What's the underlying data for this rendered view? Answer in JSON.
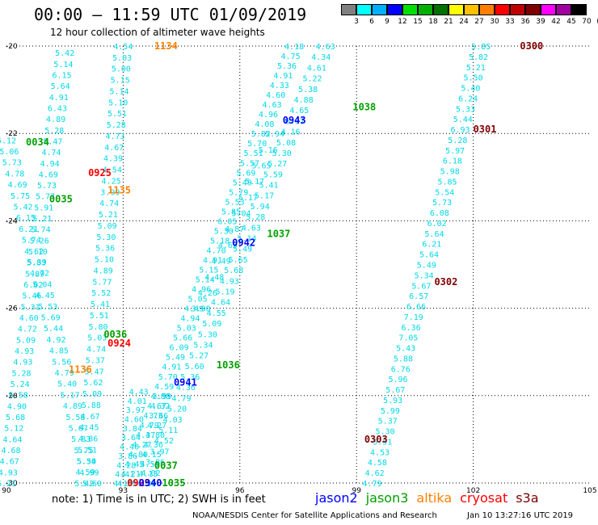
{
  "header": {
    "title": "00:00 – 11:59 UTC 01/09/2019",
    "subtitle": "12 hour collection of altimeter wave heights"
  },
  "colorbar": {
    "ticks": [
      "3",
      "6",
      "9",
      "12",
      "15",
      "18",
      "21",
      "24",
      "27",
      "30",
      "33",
      "36",
      "39",
      "42",
      "45",
      "70",
      "(ft)"
    ],
    "colors": [
      "#808080",
      "#00ffff",
      "#00b0ff",
      "#0000ff",
      "#00e000",
      "#00b000",
      "#007000",
      "#ffff00",
      "#ffc000",
      "#ff8000",
      "#ff0000",
      "#c00000",
      "#800000",
      "#ff00ff",
      "#a000a0",
      "#000000"
    ]
  },
  "map": {
    "xticks": [
      "90",
      "93",
      "96",
      "99",
      "102",
      "105"
    ],
    "yticks": [
      "-20",
      "-22",
      "-24",
      "-26",
      "-28",
      "-30"
    ]
  },
  "chart_data": {
    "type": "scatter",
    "lon_range": [
      90,
      105
    ],
    "lat_range": [
      -30,
      -20
    ],
    "pass_labels": [
      {
        "text": "1134",
        "lon": 94.1,
        "lat": -20.0,
        "sat": "altika"
      },
      {
        "text": "0300",
        "lon": 103.5,
        "lat": -20.0,
        "sat": "s3a"
      },
      {
        "text": "1038",
        "lon": 99.2,
        "lat": -21.4,
        "sat": "jason3"
      },
      {
        "text": "0943",
        "lon": 97.4,
        "lat": -21.7,
        "sat": "jason2"
      },
      {
        "text": "0301",
        "lon": 102.3,
        "lat": -21.9,
        "sat": "s3a"
      },
      {
        "text": "0034",
        "lon": 90.8,
        "lat": -22.2,
        "sat": "jason3"
      },
      {
        "text": "0925",
        "lon": 92.4,
        "lat": -22.9,
        "sat": "cryosat"
      },
      {
        "text": "1135",
        "lon": 92.9,
        "lat": -23.3,
        "sat": "altika"
      },
      {
        "text": "0035",
        "lon": 91.4,
        "lat": -23.5,
        "sat": "jason3"
      },
      {
        "text": "1037",
        "lon": 97.0,
        "lat": -24.3,
        "sat": "jason3"
      },
      {
        "text": "0942",
        "lon": 96.1,
        "lat": -24.5,
        "sat": "jason2"
      },
      {
        "text": "0302",
        "lon": 101.3,
        "lat": -25.4,
        "sat": "s3a"
      },
      {
        "text": "0036",
        "lon": 92.8,
        "lat": -26.6,
        "sat": "jason3"
      },
      {
        "text": "0924",
        "lon": 92.9,
        "lat": -26.8,
        "sat": "cryosat"
      },
      {
        "text": "1136",
        "lon": 91.9,
        "lat": -27.4,
        "sat": "altika"
      },
      {
        "text": "1036",
        "lon": 95.7,
        "lat": -27.3,
        "sat": "jason3"
      },
      {
        "text": "0941",
        "lon": 94.6,
        "lat": -27.7,
        "sat": "jason2"
      },
      {
        "text": "0303",
        "lon": 99.5,
        "lat": -29.0,
        "sat": "s3a"
      },
      {
        "text": "0037",
        "lon": 94.1,
        "lat": -29.6,
        "sat": "jason3"
      },
      {
        "text": "0923",
        "lon": 93.4,
        "lat": -30.0,
        "sat": "cryosat"
      },
      {
        "text": "0940",
        "lon": 93.7,
        "lat": -30.0,
        "sat": "jason2"
      },
      {
        "text": "1035",
        "lon": 94.3,
        "lat": -30.0,
        "sat": "jason3"
      }
    ],
    "tracks": [
      {
        "name": "t1",
        "lon_start": 91.5,
        "lat_start": -20.15,
        "lon_end": 90.0,
        "lat_end": -30.0,
        "values": [
          "5.42",
          "5.14",
          "6.15",
          "5.64",
          "4.91",
          "6.43",
          "4.89",
          "5.28",
          "5.47",
          "4.74",
          "4.94",
          "4.69",
          "5.73",
          "5.77",
          "5.91",
          "5.21",
          "5.74",
          "5.26",
          "5.10",
          "5.83",
          "5.89",
          "6.02",
          "5.46",
          "5.31",
          "4.60",
          "4.72",
          "5.09",
          "4.93",
          "4.93",
          "5.28",
          "5.24",
          "5.58",
          "4.90",
          "5.68",
          "5.12",
          "4.64",
          "4.68",
          "4.67",
          "4.93",
          "5.21"
        ]
      },
      {
        "name": "t2",
        "lon_start": 93.0,
        "lat_start": -20.0,
        "lon_end": 92.0,
        "lat_end": -30.0,
        "values": [
          "4.54",
          "5.03",
          "5.00",
          "5.15",
          "5.14",
          "5.10",
          "5.51",
          "5.28",
          "4.73",
          "4.67",
          "4.39",
          "4.54",
          "4.25",
          "3.99",
          "4.74",
          "5.21",
          "5.09",
          "5.30",
          "5.36",
          "5.10",
          "4.89",
          "5.77",
          "5.52",
          "5.41",
          "5.51",
          "5.80",
          "5.03",
          "4.74",
          "5.37",
          "5.47",
          "5.62",
          "5.09",
          "5.88",
          "4.67",
          "4.45",
          "4.86",
          "5.51",
          "5.34",
          "4.59",
          "5.42"
        ]
      },
      {
        "name": "t3",
        "lon_start": 90.0,
        "lat_start": -22.15,
        "lon_end": 92.2,
        "lat_end": -30.0,
        "values": [
          "5.12",
          "5.06",
          "5.73",
          "4.78",
          "4.69",
          "5.75",
          "5.42",
          "6.15",
          "6.21",
          "5.74",
          "4.62",
          "5.39",
          "4.72",
          "5.04",
          "4.45",
          "5.53",
          "5.69",
          "5.44",
          "4.92",
          "4.85",
          "5.56",
          "4.79",
          "5.40",
          "5.17",
          "4.89",
          "5.58",
          "5.67",
          "5.83",
          "5.75",
          "5.50",
          "4.99",
          "5.60"
        ]
      },
      {
        "name": "t4",
        "lon_start": 93.4,
        "lat_start": -27.9,
        "lon_end": 93.0,
        "lat_end": -30.0,
        "values": [
          "4.43",
          "4.01",
          "3.97",
          "4.60",
          "3.84",
          "3.64",
          "4.40",
          "3.86",
          "4.28",
          "4.41",
          "4.18"
        ]
      },
      {
        "name": "t5",
        "lon_start": 94.0,
        "lat_start": -28.0,
        "lon_end": 93.6,
        "lat_end": -30.0,
        "values": [
          "3.99",
          "4.32",
          "3.66",
          "4.27",
          "4.80",
          "4.36",
          "4.15",
          "4.55",
          "4.13",
          "4.35"
        ]
      },
      {
        "name": "t6",
        "lon_start": 97.4,
        "lat_start": -20.0,
        "lon_end": 93.1,
        "lat_end": -30.0,
        "values": [
          "4.18",
          "4.75",
          "5.36",
          "4.91",
          "4.33",
          "4.60",
          "4.63",
          "4.96",
          "4.08",
          "5.82",
          "5.70",
          "5.51",
          "5.57",
          "5.69",
          "5.49",
          "5.79",
          "5.53",
          "5.85",
          "6.05",
          "5.30",
          "5.18",
          "4.70",
          "4.91",
          "5.15",
          "5.14",
          "4.96",
          "5.05",
          "4.49",
          "4.94",
          "5.03",
          "5.66",
          "6.09",
          "5.49",
          "4.91",
          "5.70",
          "4.59",
          "4.80",
          "4.67",
          "4.73",
          "4.79",
          "4.37",
          "4.27",
          "4.80",
          "4.45",
          "4.21",
          "4.39"
        ]
      },
      {
        "name": "t7",
        "lon_start": 98.2,
        "lat_start": -20.0,
        "lon_end": 93.6,
        "lat_end": -30.0,
        "values": [
          "4.63",
          "4.34",
          "4.61",
          "5.22",
          "5.38",
          "4.88",
          "4.65",
          "6.07",
          "4.16",
          "5.08",
          "5.30",
          "5.27",
          "5.59",
          "5.41",
          "5.17",
          "5.94",
          "5.28",
          "4.63",
          "5.14",
          "5.49",
          "5.65",
          "5.68",
          "4.93",
          "5.19",
          "4.64",
          "4.55",
          "5.09",
          "5.30",
          "5.34",
          "5.27",
          "5.60",
          "5.36",
          "4.36",
          "4.79",
          "5.20",
          "4.03",
          "5.11",
          "4.52",
          "3.97",
          "3.86",
          "4.02",
          "4.23"
        ]
      },
      {
        "name": "t8",
        "lon_start": 96.9,
        "lat_start": -22.0,
        "lon_end": 95.0,
        "lat_end": -26.0,
        "values": [
          "5.94",
          "5.16",
          "5.65",
          "5.17",
          "5.17",
          "5.04",
          "4.87",
          "4.65",
          "4.49",
          "4.48",
          "4.26",
          "3.90"
        ]
      },
      {
        "name": "t9",
        "lon_start": 102.2,
        "lat_start": -20.0,
        "lon_end": 99.4,
        "lat_end": -30.0,
        "values": [
          "5.85",
          "5.82",
          "5.21",
          "5.50",
          "5.40",
          "6.24",
          "5.33",
          "5.44",
          "6.93",
          "5.28",
          "5.97",
          "6.18",
          "5.98",
          "5.85",
          "5.54",
          "5.73",
          "6.08",
          "6.02",
          "5.64",
          "6.21",
          "5.64",
          "5.49",
          "5.34",
          "5.67",
          "6.57",
          "6.66",
          "7.19",
          "6.36",
          "7.05",
          "5.43",
          "5.88",
          "6.76",
          "5.96",
          "5.67",
          "5.93",
          "5.99",
          "5.37",
          "5.30",
          "5.51",
          "4.53",
          "4.58",
          "4.62",
          "4.79"
        ]
      }
    ]
  },
  "footer": {
    "note": "note: 1) Time is in UTC; 2) SWH is in feet",
    "legend": [
      {
        "label": "jason2",
        "color": "#0000ff"
      },
      {
        "label": "jason3",
        "color": "#00a000"
      },
      {
        "label": "altika",
        "color": "#ff8000"
      },
      {
        "label": "cryosat",
        "color": "#ff0000"
      },
      {
        "label": "s3a",
        "color": "#800000"
      }
    ],
    "credit": "NOAA/NESDIS Center for Satellite Applications and Research",
    "timestamp": "Jan 10 13:27:16 UTC 2019"
  }
}
